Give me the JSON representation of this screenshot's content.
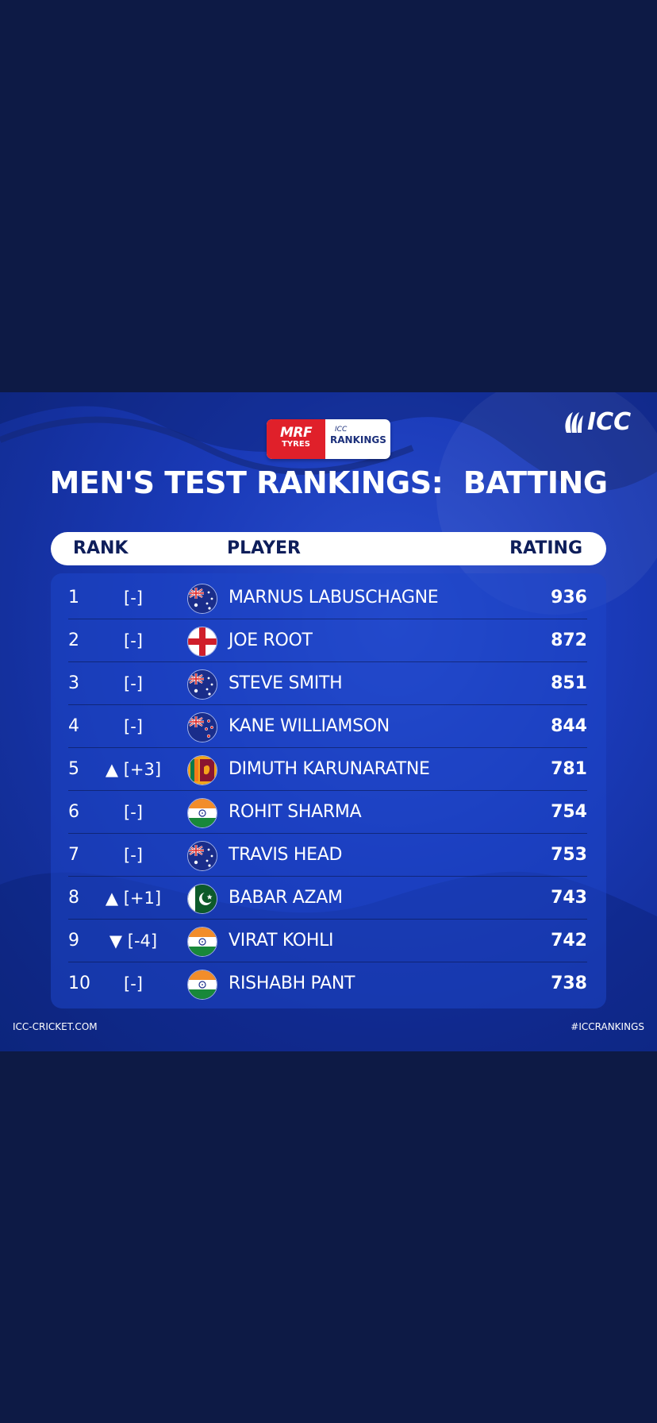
{
  "logo": {
    "mrf_line1": "MRF",
    "mrf_line2": "TYRES",
    "icc_small": "ICC",
    "rankings": "RANKINGS",
    "brand": "ICC"
  },
  "title": "MEN'S TEST RANKINGS:  BATTING",
  "headers": {
    "rank": "RANK",
    "player": "PLAYER",
    "rating": "RATING"
  },
  "rows": [
    {
      "rank": "1",
      "change": "[-]",
      "flag": "australia-flag",
      "name": "MARNUS LABUSCHAGNE",
      "rating": "936"
    },
    {
      "rank": "2",
      "change": "[-]",
      "flag": "england-flag",
      "name": "JOE ROOT",
      "rating": "872"
    },
    {
      "rank": "3",
      "change": "[-]",
      "flag": "australia-flag",
      "name": "STEVE SMITH",
      "rating": "851"
    },
    {
      "rank": "4",
      "change": "[-]",
      "flag": "new-zealand-flag",
      "name": "KANE WILLIAMSON",
      "rating": "844"
    },
    {
      "rank": "5",
      "change": "▲ [+3]",
      "flag": "sri-lanka-flag",
      "name": "DIMUTH KARUNARATNE",
      "rating": "781"
    },
    {
      "rank": "6",
      "change": "[-]",
      "flag": "india-flag",
      "name": "ROHIT SHARMA",
      "rating": "754"
    },
    {
      "rank": "7",
      "change": "[-]",
      "flag": "australia-flag",
      "name": "TRAVIS HEAD",
      "rating": "753"
    },
    {
      "rank": "8",
      "change": "▲ [+1]",
      "flag": "pakistan-flag",
      "name": "BABAR AZAM",
      "rating": "743"
    },
    {
      "rank": "9",
      "change": "▼ [-4]",
      "flag": "india-flag",
      "name": "VIRAT KOHLI",
      "rating": "742"
    },
    {
      "rank": "10",
      "change": "[-]",
      "flag": "india-flag",
      "name": "RISHABH PANT",
      "rating": "738"
    }
  ],
  "footer": {
    "left": "ICC-CRICKET.COM",
    "right": "#ICCRANKINGS"
  },
  "colors": {
    "page_bg": "#0d1a45",
    "card_bg": "#1a3ab8",
    "header_text": "#0e1e5a",
    "mrf_red": "#e0202a"
  }
}
